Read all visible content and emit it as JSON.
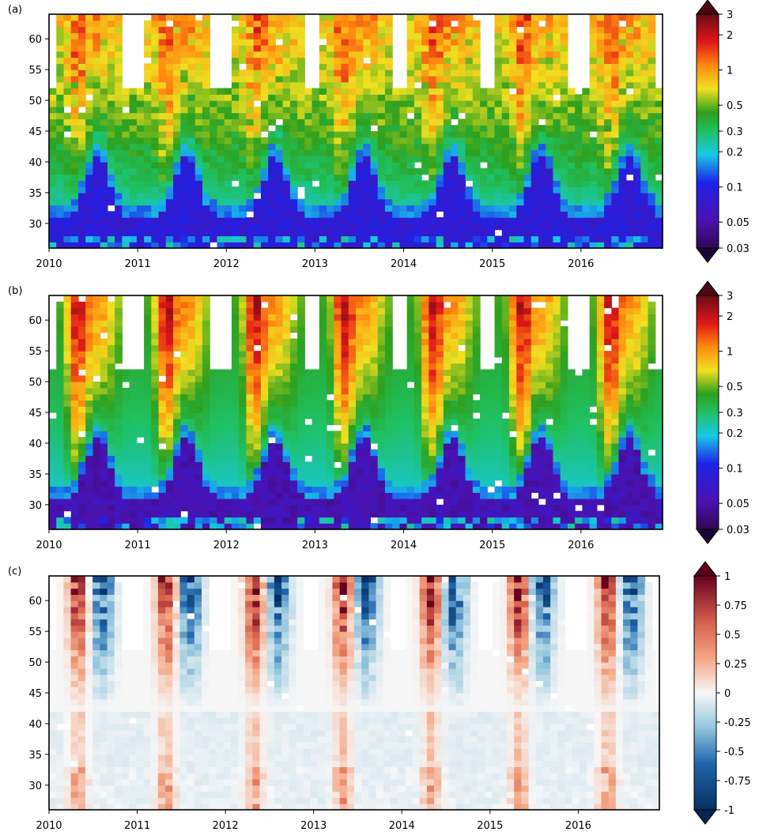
{
  "chart_data": [
    {
      "type": "heatmap",
      "panel_label": "(a)",
      "x_ticks": [
        "2010",
        "2011",
        "2012",
        "2013",
        "2014",
        "2015",
        "2016"
      ],
      "xlim": [
        2010.0,
        2016.92
      ],
      "y_ticks": [
        30,
        35,
        40,
        45,
        50,
        55,
        60
      ],
      "ylim": [
        26,
        64
      ],
      "colormap": "jet",
      "colorbar": {
        "scale": "log",
        "range": [
          0.03,
          3
        ],
        "ticks": [
          "0.03",
          "0.05",
          "0.1",
          "0.2",
          "0.3",
          "0.5",
          "1",
          "2",
          "3"
        ],
        "tick_values": [
          0.03,
          0.05,
          0.1,
          0.2,
          0.3,
          0.5,
          1,
          2,
          3
        ],
        "extend": "both"
      },
      "colors": {
        "low": "#3a0d5c",
        "mid": "#1f8f2a",
        "high": "#7a0a16"
      }
    },
    {
      "type": "heatmap",
      "panel_label": "(b)",
      "x_ticks": [
        "2010",
        "2011",
        "2012",
        "2013",
        "2014",
        "2015",
        "2016"
      ],
      "xlim": [
        2010.0,
        2016.92
      ],
      "y_ticks": [
        30,
        35,
        40,
        45,
        50,
        55,
        60
      ],
      "ylim": [
        26,
        64
      ],
      "colormap": "jet",
      "colorbar": {
        "scale": "log",
        "range": [
          0.03,
          3
        ],
        "ticks": [
          "0.03",
          "0.05",
          "0.1",
          "0.2",
          "0.3",
          "0.5",
          "1",
          "2",
          "3"
        ],
        "tick_values": [
          0.03,
          0.05,
          0.1,
          0.2,
          0.3,
          0.5,
          1,
          2,
          3
        ],
        "extend": "both"
      }
    },
    {
      "type": "heatmap",
      "panel_label": "(c)",
      "x_ticks": [
        "2010",
        "2011",
        "2012",
        "2013",
        "2014",
        "2015",
        "2016"
      ],
      "xlim": [
        2010.0,
        2016.92
      ],
      "y_ticks": [
        30,
        35,
        40,
        45,
        50,
        55,
        60
      ],
      "ylim": [
        26,
        64
      ],
      "colormap": "RdBu_r",
      "colorbar": {
        "scale": "linear",
        "range": [
          -1,
          1
        ],
        "ticks": [
          "-1",
          "-0.75",
          "-0.5",
          "-0.25",
          "0",
          "0.25",
          "0.5",
          "0.75",
          "1"
        ],
        "tick_values": [
          -1,
          -0.75,
          -0.5,
          -0.25,
          0,
          0.25,
          0.5,
          0.75,
          1
        ],
        "extend": "both"
      },
      "colors": {
        "low": "#053061",
        "mid": "#f7f7f7",
        "high": "#67001f"
      }
    }
  ]
}
